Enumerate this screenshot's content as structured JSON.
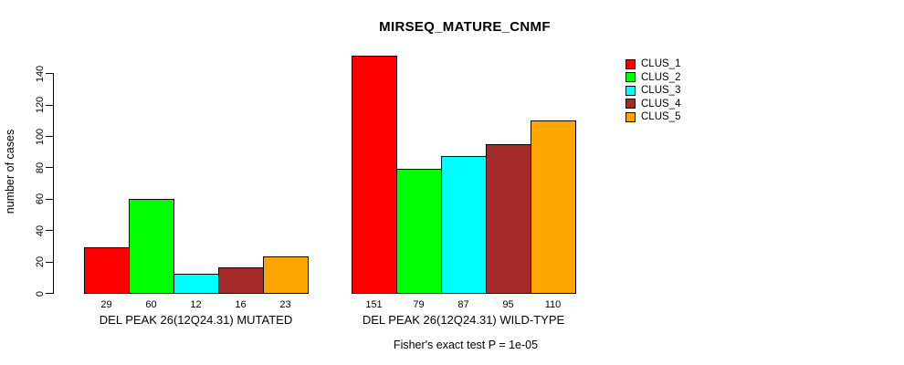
{
  "figure": {
    "background": "#FFFFFF"
  },
  "chart_data": {
    "type": "bar",
    "title": "MIRSEQ_MATURE_CNMF",
    "ylabel": "number of cases",
    "xlabel": "",
    "annotation": "Fisher's exact test P = 1e-05",
    "categories": [
      "DEL PEAK 26(12Q24.31) MUTATED",
      "DEL PEAK 26(12Q24.31) WILD-TYPE"
    ],
    "series": [
      {
        "name": "CLUS_1",
        "color": "#FF0000",
        "values": [
          29,
          151
        ]
      },
      {
        "name": "CLUS_2",
        "color": "#00FF00",
        "values": [
          60,
          79
        ]
      },
      {
        "name": "CLUS_3",
        "color": "#00FFFF",
        "values": [
          12,
          87
        ]
      },
      {
        "name": "CLUS_4",
        "color": "#A52A2A",
        "values": [
          16,
          95
        ]
      },
      {
        "name": "CLUS_5",
        "color": "#FFA500",
        "values": [
          23,
          110
        ]
      }
    ],
    "bar_value_labels": [
      [
        29,
        60,
        12,
        16,
        23
      ],
      [
        151,
        79,
        87,
        95,
        110
      ]
    ],
    "y_ticks": [
      0,
      20,
      40,
      60,
      80,
      100,
      120,
      140
    ],
    "ylim": [
      0,
      151
    ],
    "grid": false,
    "legend": {
      "position": "right",
      "entries": [
        "CLUS_1",
        "CLUS_2",
        "CLUS_3",
        "CLUS_4",
        "CLUS_5"
      ]
    }
  }
}
